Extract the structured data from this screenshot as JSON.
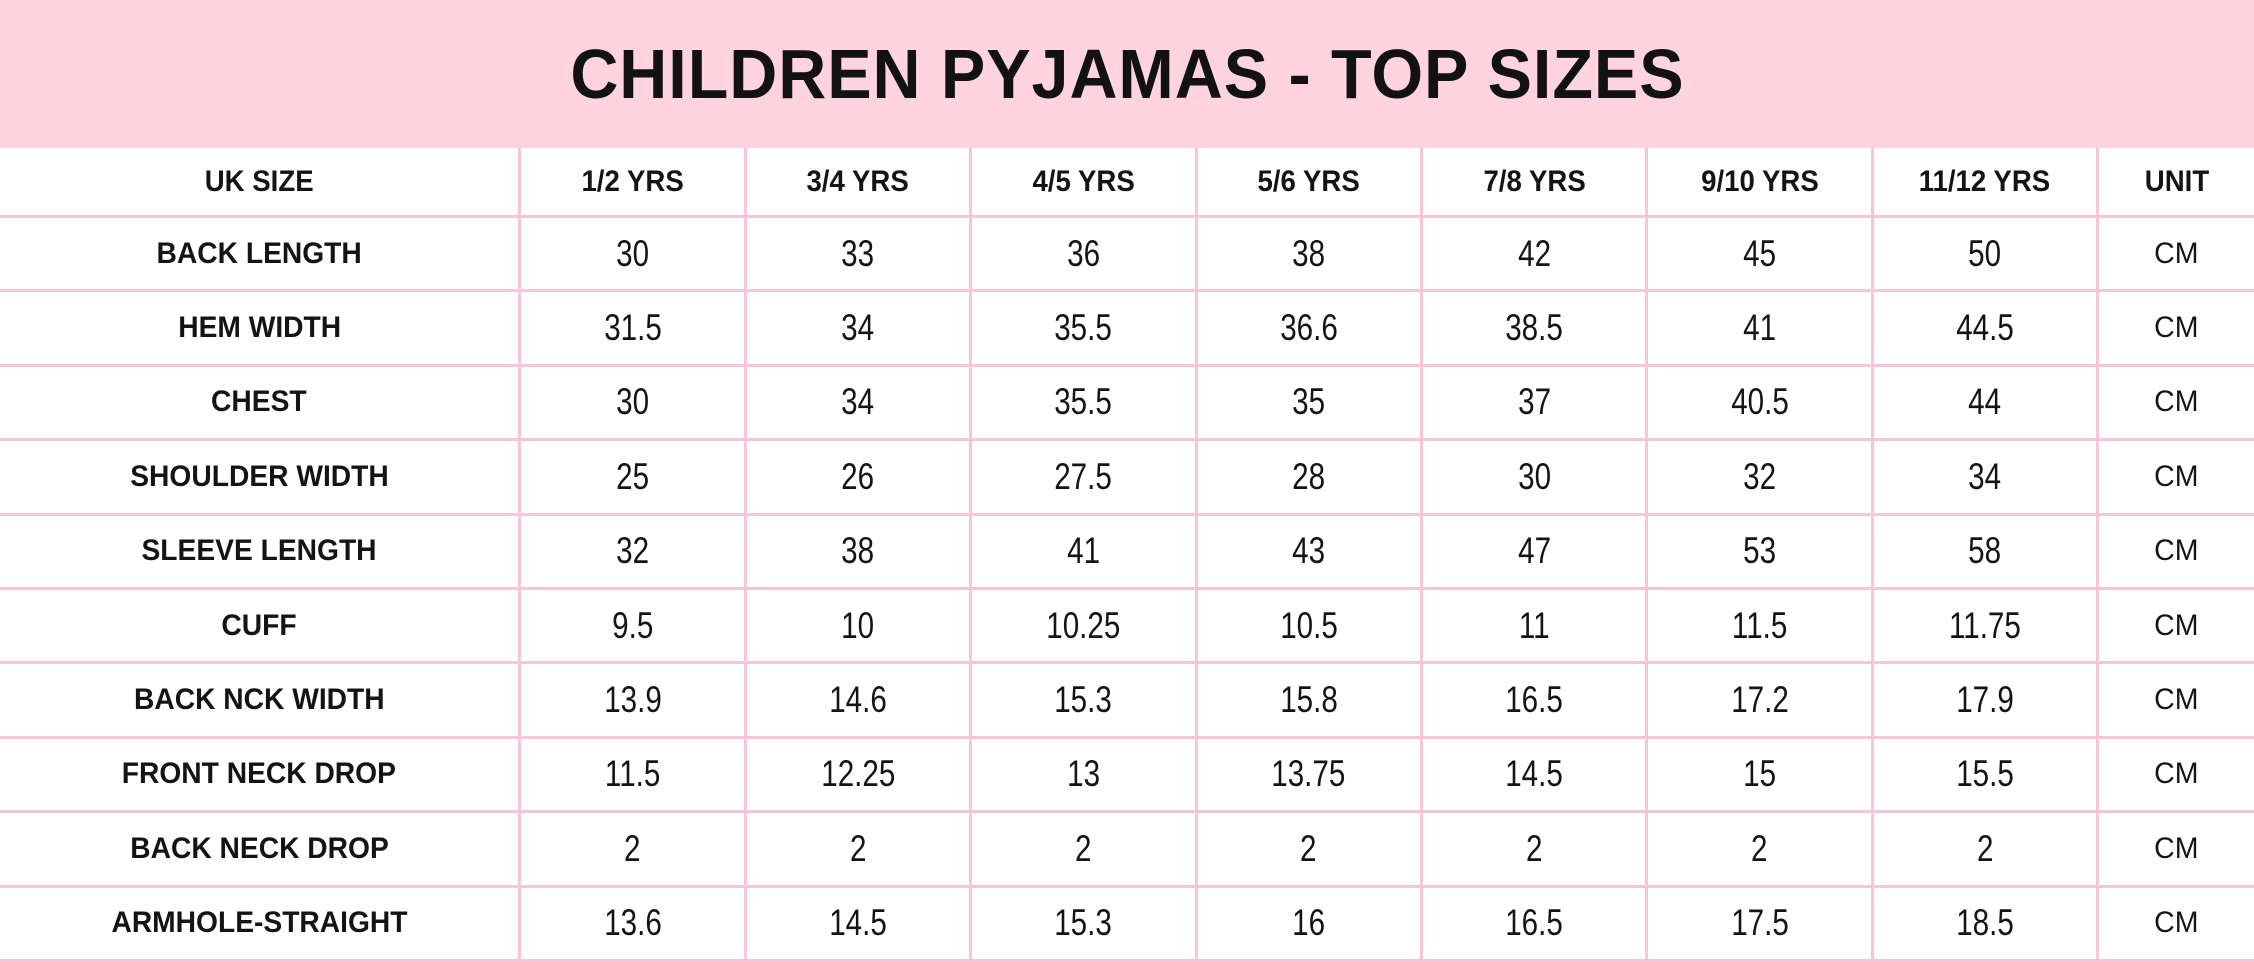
{
  "title": "CHILDREN PYJAMAS - TOP SIZES",
  "colors": {
    "band_pink": "#ffd3e0",
    "border_pink": "#f5c6d7",
    "cell_bg": "#ffffff",
    "text": "#141414"
  },
  "table": {
    "columns": [
      "UK SIZE",
      "1/2 YRS",
      "3/4 YRS",
      "4/5 YRS",
      "5/6 YRS",
      "7/8 YRS",
      "9/10 YRS",
      "11/12 YRS",
      "UNIT"
    ],
    "rows": [
      {
        "label": "BACK LENGTH",
        "values": [
          "30",
          "33",
          "36",
          "38",
          "42",
          "45",
          "50"
        ],
        "unit": "CM"
      },
      {
        "label": "HEM WIDTH",
        "values": [
          "31.5",
          "34",
          "35.5",
          "36.6",
          "38.5",
          "41",
          "44.5"
        ],
        "unit": "CM"
      },
      {
        "label": "CHEST",
        "values": [
          "30",
          "34",
          "35.5",
          "35",
          "37",
          "40.5",
          "44"
        ],
        "unit": "CM"
      },
      {
        "label": "SHOULDER WIDTH",
        "values": [
          "25",
          "26",
          "27.5",
          "28",
          "30",
          "32",
          "34"
        ],
        "unit": "CM"
      },
      {
        "label": "SLEEVE LENGTH",
        "values": [
          "32",
          "38",
          "41",
          "43",
          "47",
          "53",
          "58"
        ],
        "unit": "CM"
      },
      {
        "label": "CUFF",
        "values": [
          "9.5",
          "10",
          "10.25",
          "10.5",
          "11",
          "11.5",
          "11.75"
        ],
        "unit": "CM"
      },
      {
        "label": "BACK NCK WIDTH",
        "values": [
          "13.9",
          "14.6",
          "15.3",
          "15.8",
          "16.5",
          "17.2",
          "17.9"
        ],
        "unit": "CM"
      },
      {
        "label": "FRONT NECK DROP",
        "values": [
          "11.5",
          "12.25",
          "13",
          "13.75",
          "14.5",
          "15",
          "15.5"
        ],
        "unit": "CM"
      },
      {
        "label": "BACK NECK DROP",
        "values": [
          "2",
          "2",
          "2",
          "2",
          "2",
          "2",
          "2"
        ],
        "unit": "CM"
      },
      {
        "label": "ARMHOLE-STRAIGHT",
        "values": [
          "13.6",
          "14.5",
          "15.3",
          "16",
          "16.5",
          "17.5",
          "18.5"
        ],
        "unit": "CM"
      }
    ]
  },
  "chart_data": {
    "type": "table",
    "title": "CHILDREN PYJAMAS - TOP SIZES",
    "categories": [
      "1/2 YRS",
      "3/4 YRS",
      "4/5 YRS",
      "5/6 YRS",
      "7/8 YRS",
      "9/10 YRS",
      "11/12 YRS"
    ],
    "unit": "CM",
    "series": [
      {
        "name": "BACK LENGTH",
        "values": [
          30,
          33,
          36,
          38,
          42,
          45,
          50
        ]
      },
      {
        "name": "HEM WIDTH",
        "values": [
          31.5,
          34,
          35.5,
          36.6,
          38.5,
          41,
          44.5
        ]
      },
      {
        "name": "CHEST",
        "values": [
          30,
          34,
          35.5,
          35,
          37,
          40.5,
          44
        ]
      },
      {
        "name": "SHOULDER WIDTH",
        "values": [
          25,
          26,
          27.5,
          28,
          30,
          32,
          34
        ]
      },
      {
        "name": "SLEEVE LENGTH",
        "values": [
          32,
          38,
          41,
          43,
          47,
          53,
          58
        ]
      },
      {
        "name": "CUFF",
        "values": [
          9.5,
          10,
          10.25,
          10.5,
          11,
          11.5,
          11.75
        ]
      },
      {
        "name": "BACK NCK WIDTH",
        "values": [
          13.9,
          14.6,
          15.3,
          15.8,
          16.5,
          17.2,
          17.9
        ]
      },
      {
        "name": "FRONT NECK DROP",
        "values": [
          11.5,
          12.25,
          13,
          13.75,
          14.5,
          15,
          15.5
        ]
      },
      {
        "name": "BACK NECK DROP",
        "values": [
          2,
          2,
          2,
          2,
          2,
          2,
          2
        ]
      },
      {
        "name": "ARMHOLE-STRAIGHT",
        "values": [
          13.6,
          14.5,
          15.3,
          16,
          16.5,
          17.5,
          18.5
        ]
      }
    ]
  }
}
